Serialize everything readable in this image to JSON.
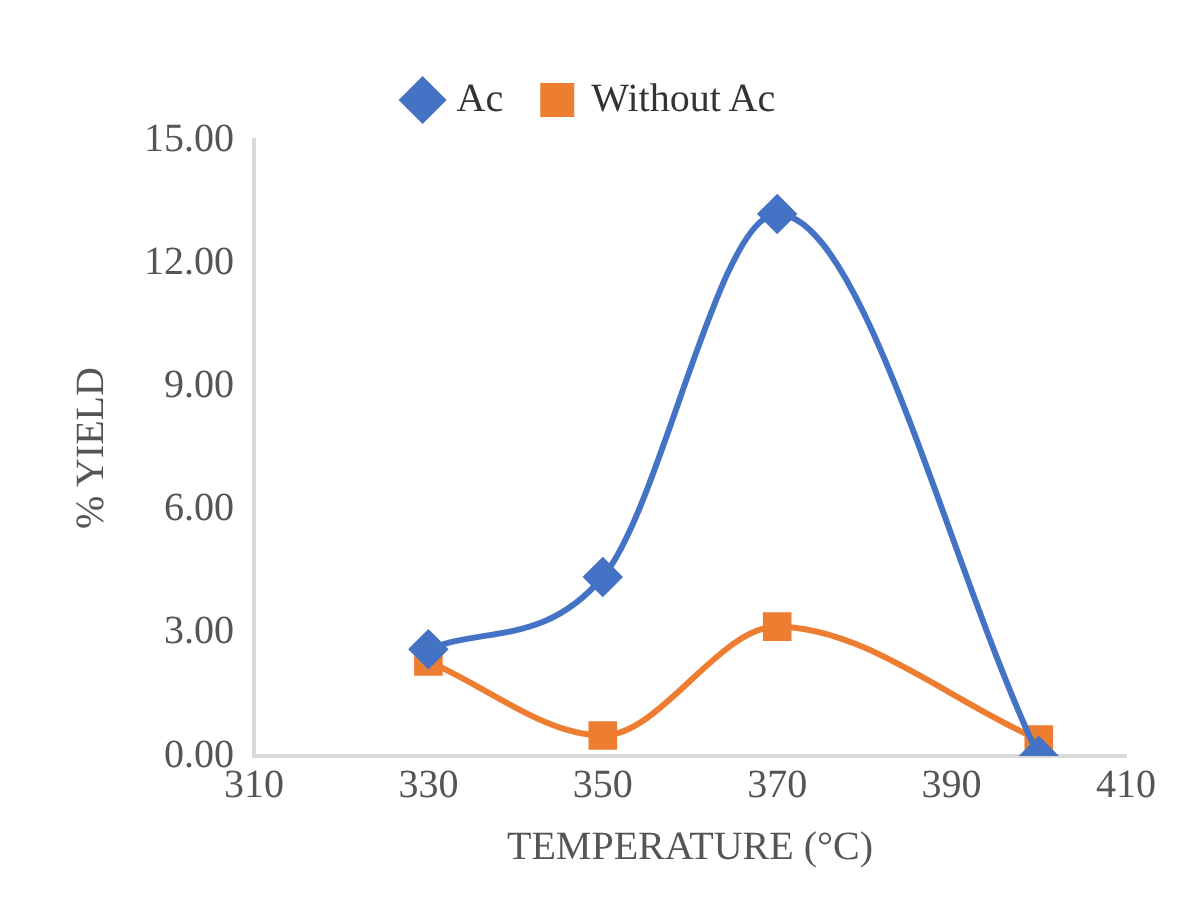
{
  "chart_data": {
    "type": "line",
    "xlabel": "TEMPERATURE (°C)",
    "ylabel": "% YIELD",
    "x": [
      330,
      350,
      370,
      400
    ],
    "series": [
      {
        "name": "Ac",
        "color": "#4472c4",
        "marker": "diamond",
        "values": [
          2.6,
          4.36,
          13.2,
          0.0
        ]
      },
      {
        "name": "Without Ac",
        "color": "#ed7d31",
        "marker": "square",
        "values": [
          2.3,
          0.5,
          3.15,
          0.4
        ]
      }
    ],
    "xlim": [
      310,
      410
    ],
    "xticks": [
      310,
      330,
      350,
      370,
      390,
      410
    ],
    "ylim": [
      0,
      15
    ],
    "yticks": [
      {
        "value": 0,
        "label": "0.00"
      },
      {
        "value": 3,
        "label": "3.00"
      },
      {
        "value": 6,
        "label": "6.00"
      },
      {
        "value": 9,
        "label": "9.00"
      },
      {
        "value": 12,
        "label": "12.00"
      },
      {
        "value": 15,
        "label": "15.00"
      }
    ],
    "grid": false,
    "legend": "top",
    "line_style": "solid"
  }
}
